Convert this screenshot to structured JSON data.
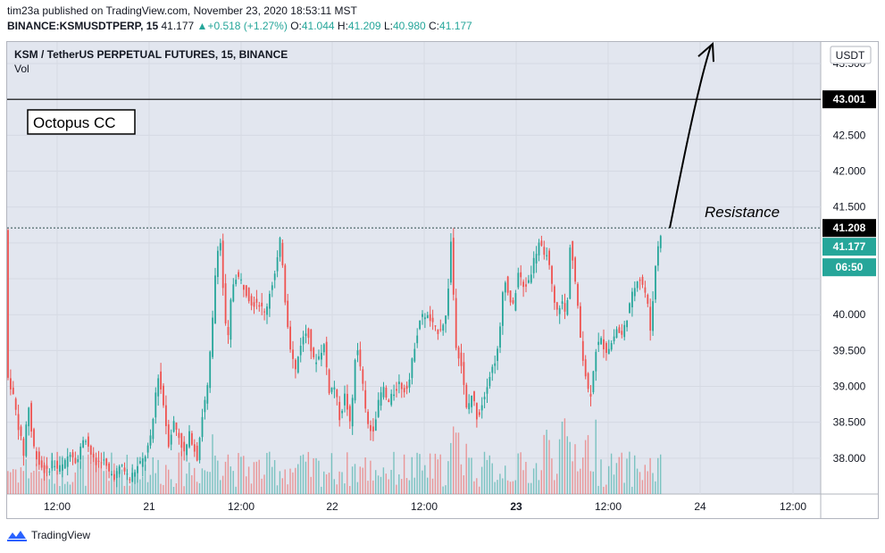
{
  "header": {
    "publisher_line": "tim23a published on TradingView.com, November 23, 2020 18:53:11 MST",
    "symbol": "BINANCE:KSMUSDTPERP, 15",
    "last": "41.177",
    "change": "+0.518 (+1.27%)",
    "open_label": "O:",
    "open": "41.044",
    "high_label": "H:",
    "high": "41.209",
    "low_label": "L:",
    "low": "40.980",
    "close_label": "C:",
    "close": "41.177"
  },
  "legend": {
    "title": "KSM / TetherUS PERPETUAL FUTURES, 15, BINANCE",
    "vol_label": "Vol"
  },
  "annotations": {
    "text_box": "Octopus CC",
    "resistance_label": "Resistance",
    "target_value": 43.001,
    "target_label": "43.001",
    "resistance_value": 41.208,
    "resistance_tag": "41.208",
    "last_price_tag": "41.177",
    "countdown_tag": "06:50"
  },
  "footer": {
    "brand": "TradingView"
  },
  "colors": {
    "up": "#26a69a",
    "down": "#ef5350",
    "grid": "#d5d9e3",
    "plot_bg": "#e2e6ef",
    "countdown_bg": "#26a69a"
  },
  "chart_data": {
    "type": "candlestick",
    "currency": "USDT",
    "y_ticks": [
      "43.500",
      "42.500",
      "42.000",
      "41.500",
      "40.000",
      "39.500",
      "39.000",
      "38.500",
      "38.000"
    ],
    "x_ticks": [
      "12:00",
      "21",
      "12:00",
      "22",
      "12:00",
      "23",
      "12:00",
      "24",
      "12:00"
    ],
    "ylim": [
      37.5,
      43.8
    ],
    "grid": true,
    "path_points": [
      [
        0,
        39.2
      ],
      [
        7,
        38.95
      ],
      [
        14,
        38.45
      ],
      [
        20,
        38.05
      ],
      [
        25,
        38.8
      ],
      [
        30,
        38.2
      ],
      [
        38,
        37.9
      ],
      [
        46,
        37.8
      ],
      [
        52,
        37.95
      ],
      [
        58,
        37.85
      ],
      [
        65,
        37.9
      ],
      [
        72,
        38.1
      ],
      [
        80,
        37.95
      ],
      [
        88,
        38.35
      ],
      [
        94,
        38.1
      ],
      [
        100,
        37.9
      ],
      [
        108,
        38.0
      ],
      [
        115,
        37.8
      ],
      [
        122,
        37.75
      ],
      [
        130,
        37.9
      ],
      [
        138,
        37.7
      ],
      [
        146,
        37.85
      ],
      [
        155,
        38.0
      ],
      [
        163,
        38.3
      ],
      [
        170,
        39.2
      ],
      [
        176,
        38.8
      ],
      [
        182,
        38.2
      ],
      [
        188,
        38.5
      ],
      [
        194,
        38.3
      ],
      [
        200,
        38.05
      ],
      [
        206,
        38.35
      ],
      [
        214,
        38.0
      ],
      [
        220,
        38.6
      ],
      [
        226,
        39.0
      ],
      [
        232,
        40.0
      ],
      [
        236,
        40.9
      ],
      [
        240,
        41.05
      ],
      [
        244,
        40.2
      ],
      [
        248,
        39.5
      ],
      [
        252,
        40.2
      ],
      [
        256,
        40.55
      ],
      [
        262,
        40.5
      ],
      [
        268,
        40.35
      ],
      [
        276,
        40.15
      ],
      [
        282,
        40.2
      ],
      [
        290,
        40.0
      ],
      [
        296,
        40.35
      ],
      [
        302,
        40.6
      ],
      [
        308,
        41.1
      ],
      [
        312,
        40.3
      ],
      [
        318,
        39.6
      ],
      [
        324,
        39.2
      ],
      [
        330,
        39.6
      ],
      [
        338,
        39.8
      ],
      [
        344,
        39.35
      ],
      [
        350,
        39.4
      ],
      [
        356,
        39.6
      ],
      [
        362,
        38.95
      ],
      [
        368,
        39.0
      ],
      [
        374,
        38.55
      ],
      [
        380,
        38.9
      ],
      [
        386,
        38.4
      ],
      [
        392,
        39.6
      ],
      [
        398,
        39.2
      ],
      [
        404,
        38.5
      ],
      [
        410,
        38.35
      ],
      [
        416,
        38.7
      ],
      [
        422,
        39.0
      ],
      [
        428,
        38.75
      ],
      [
        434,
        38.9
      ],
      [
        440,
        39.05
      ],
      [
        446,
        38.95
      ],
      [
        452,
        39.1
      ],
      [
        458,
        39.6
      ],
      [
        464,
        39.95
      ],
      [
        470,
        40.0
      ],
      [
        476,
        39.9
      ],
      [
        482,
        39.75
      ],
      [
        488,
        39.85
      ],
      [
        494,
        40.0
      ],
      [
        498,
        41.1
      ],
      [
        504,
        39.6
      ],
      [
        510,
        39.3
      ],
      [
        516,
        38.65
      ],
      [
        522,
        38.9
      ],
      [
        528,
        38.55
      ],
      [
        534,
        38.8
      ],
      [
        540,
        39.1
      ],
      [
        546,
        39.3
      ],
      [
        552,
        39.55
      ],
      [
        558,
        40.6
      ],
      [
        562,
        40.3
      ],
      [
        568,
        40.1
      ],
      [
        574,
        40.6
      ],
      [
        580,
        40.35
      ],
      [
        586,
        40.5
      ],
      [
        592,
        40.8
      ],
      [
        598,
        41.05
      ],
      [
        602,
        40.75
      ],
      [
        606,
        40.9
      ],
      [
        610,
        40.5
      ],
      [
        616,
        40.0
      ],
      [
        622,
        40.2
      ],
      [
        628,
        39.95
      ],
      [
        632,
        41.05
      ],
      [
        638,
        40.4
      ],
      [
        644,
        39.6
      ],
      [
        650,
        39.1
      ],
      [
        654,
        38.8
      ],
      [
        660,
        39.5
      ],
      [
        666,
        39.65
      ],
      [
        672,
        39.5
      ],
      [
        678,
        39.6
      ],
      [
        684,
        39.8
      ],
      [
        690,
        39.7
      ],
      [
        696,
        40.0
      ],
      [
        702,
        40.3
      ],
      [
        708,
        40.55
      ],
      [
        714,
        40.4
      ],
      [
        718,
        40.2
      ],
      [
        722,
        39.75
      ],
      [
        726,
        40.5
      ],
      [
        730,
        40.95
      ],
      [
        734,
        41.18
      ]
    ],
    "volume_scale": [
      0,
      60
    ]
  }
}
